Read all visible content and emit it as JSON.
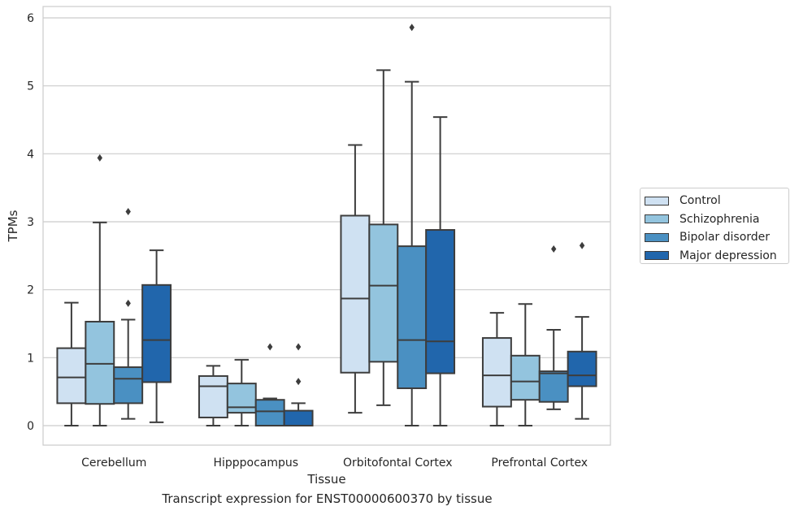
{
  "chart_data": {
    "type": "boxplot",
    "title": "Transcript expression for ENST00000600370 by tissue",
    "xlabel": "Tissue",
    "ylabel": "TPMs",
    "ylim": [
      -0.3,
      6.15
    ],
    "yticks": [
      0,
      1,
      2,
      3,
      4,
      5,
      6
    ],
    "categories": [
      "Cerebellum",
      "Hipppocampus",
      "Orbitofontal Cortex",
      "Prefrontal Cortex"
    ],
    "grid": true,
    "legend_position": "right",
    "series": [
      {
        "name": "Control",
        "color": "#cfe1f2",
        "boxes": [
          {
            "whislo": 0.0,
            "q1": 0.33,
            "med": 0.71,
            "q3": 1.14,
            "whishi": 1.81,
            "fliers": []
          },
          {
            "whislo": 0.0,
            "q1": 0.12,
            "med": 0.58,
            "q3": 0.73,
            "whishi": 0.88,
            "fliers": []
          },
          {
            "whislo": 0.19,
            "q1": 0.78,
            "med": 1.87,
            "q3": 3.09,
            "whishi": 4.13,
            "fliers": []
          },
          {
            "whislo": 0.0,
            "q1": 0.28,
            "med": 0.74,
            "q3": 1.29,
            "whishi": 1.66,
            "fliers": []
          }
        ]
      },
      {
        "name": "Schizophrenia",
        "color": "#93c4de",
        "boxes": [
          {
            "whislo": 0.0,
            "q1": 0.32,
            "med": 0.91,
            "q3": 1.53,
            "whishi": 2.99,
            "fliers": [
              3.94
            ]
          },
          {
            "whislo": 0.0,
            "q1": 0.19,
            "med": 0.27,
            "q3": 0.62,
            "whishi": 0.97,
            "fliers": []
          },
          {
            "whislo": 0.3,
            "q1": 0.94,
            "med": 2.06,
            "q3": 2.96,
            "whishi": 5.23,
            "fliers": []
          },
          {
            "whislo": 0.0,
            "q1": 0.38,
            "med": 0.65,
            "q3": 1.03,
            "whishi": 1.79,
            "fliers": []
          }
        ]
      },
      {
        "name": "Bipolar disorder",
        "color": "#4a90c2",
        "boxes": [
          {
            "whislo": 0.1,
            "q1": 0.33,
            "med": 0.69,
            "q3": 0.86,
            "whishi": 1.56,
            "fliers": [
              1.8,
              3.15
            ]
          },
          {
            "whislo": 0.0,
            "q1": 0.0,
            "med": 0.21,
            "q3": 0.38,
            "whishi": 0.4,
            "fliers": [
              1.16
            ]
          },
          {
            "whislo": 0.0,
            "q1": 0.55,
            "med": 1.26,
            "q3": 2.64,
            "whishi": 5.06,
            "fliers": [
              5.86
            ]
          },
          {
            "whislo": 0.24,
            "q1": 0.35,
            "med": 0.77,
            "q3": 0.8,
            "whishi": 1.41,
            "fliers": [
              2.6
            ]
          }
        ]
      },
      {
        "name": "Major depression",
        "color": "#2166ac",
        "boxes": [
          {
            "whislo": 0.05,
            "q1": 0.64,
            "med": 1.26,
            "q3": 2.07,
            "whishi": 2.58,
            "fliers": []
          },
          {
            "whislo": 0.0,
            "q1": 0.0,
            "med": 0.0,
            "q3": 0.22,
            "whishi": 0.33,
            "fliers": [
              0.65,
              1.16
            ]
          },
          {
            "whislo": 0.0,
            "q1": 0.77,
            "med": 1.24,
            "q3": 2.88,
            "whishi": 4.54,
            "fliers": []
          },
          {
            "whislo": 0.1,
            "q1": 0.58,
            "med": 0.74,
            "q3": 1.09,
            "whishi": 1.6,
            "fliers": [
              2.65
            ]
          }
        ]
      }
    ]
  }
}
